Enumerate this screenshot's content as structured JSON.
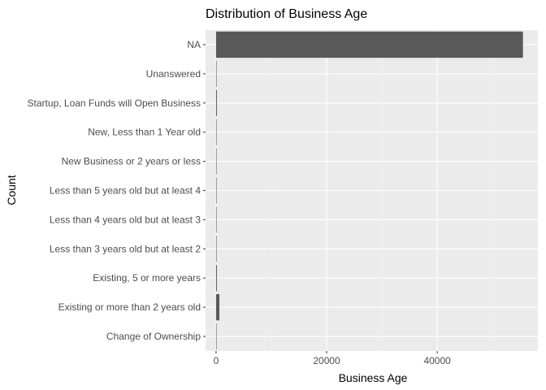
{
  "chart_data": {
    "type": "bar",
    "orientation": "horizontal",
    "title": "Distribution of Business Age",
    "xlabel": "Business Age",
    "ylabel": "Count",
    "categories": [
      "NA",
      "Unanswered",
      "Startup, Loan Funds will Open Business",
      "New, Less than 1 Year old",
      "New Business or 2 years or less",
      "Less than 5 years old but at least 4",
      "Less than 4 years old but at least 3",
      "Less than 3 years old but at least 2",
      "Existing, 5 or more years",
      "Existing or more than 2 years old",
      "Change of Ownership"
    ],
    "values": [
      55500,
      10,
      150,
      5,
      5,
      5,
      5,
      5,
      150,
      600,
      5
    ],
    "xlim": [
      -1900,
      58200
    ],
    "xticks": [
      0,
      20000,
      40000
    ],
    "xtick_labels": [
      "0",
      "20000",
      "40000"
    ],
    "grid": true,
    "colors": {
      "bar": "#595959",
      "panel": "#ebebeb",
      "grid_major": "#ffffff",
      "grid_minor": "#f5f5f5"
    }
  }
}
